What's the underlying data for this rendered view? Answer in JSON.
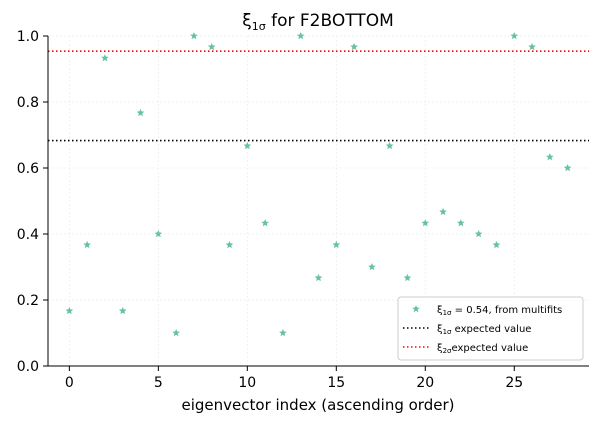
{
  "chart_data": {
    "type": "scatter",
    "title_prefix": "ξ",
    "title_sub": "1σ",
    "title_suffix": " for F2BOTTOM",
    "xlabel": "eigenvector index (ascending order)",
    "ylabel": "",
    "xlim": [
      -1.2,
      29.2
    ],
    "ylim": [
      0,
      1.0
    ],
    "xticks": [
      0,
      5,
      10,
      15,
      20,
      25
    ],
    "yticks": [
      0.0,
      0.2,
      0.4,
      0.6,
      0.8,
      1.0
    ],
    "ytick_labels": [
      "0.0",
      "0.2",
      "0.4",
      "0.6",
      "0.8",
      "1.0"
    ],
    "xtick_labels": [
      "0",
      "5",
      "10",
      "15",
      "20",
      "25"
    ],
    "grid": true,
    "legend_position": "lower-right",
    "series": [
      {
        "name": "ξ1σ = 0.54, from multifits",
        "legend_prefix": "ξ",
        "legend_sub": "1σ",
        "legend_suffix": " = 0.54, from multifits",
        "marker": "star",
        "color": "#66c2a5",
        "x": [
          0,
          1,
          2,
          3,
          4,
          5,
          6,
          7,
          8,
          9,
          10,
          11,
          12,
          13,
          14,
          15,
          16,
          17,
          18,
          19,
          20,
          21,
          22,
          23,
          24,
          25,
          26,
          27,
          28
        ],
        "y": [
          0.167,
          0.367,
          0.933,
          0.167,
          0.767,
          0.4,
          0.1,
          1.0,
          0.967,
          0.367,
          0.667,
          0.433,
          0.1,
          1.0,
          0.267,
          0.367,
          0.967,
          0.3,
          0.667,
          0.267,
          0.433,
          0.467,
          0.433,
          0.4,
          0.367,
          1.0,
          0.967,
          0.633,
          0.6
        ]
      }
    ],
    "reference_lines": [
      {
        "name": "ξ1σ expected value",
        "legend_prefix": "ξ",
        "legend_sub": "1σ",
        "legend_suffix": " expected value",
        "y": 0.683,
        "color": "#000000",
        "style": "dotted"
      },
      {
        "name": "ξ2σexpected value",
        "legend_prefix": "ξ",
        "legend_sub": "2σ",
        "legend_suffix": "expected value",
        "y": 0.954,
        "color": "#ff0000",
        "style": "dotted"
      }
    ]
  }
}
